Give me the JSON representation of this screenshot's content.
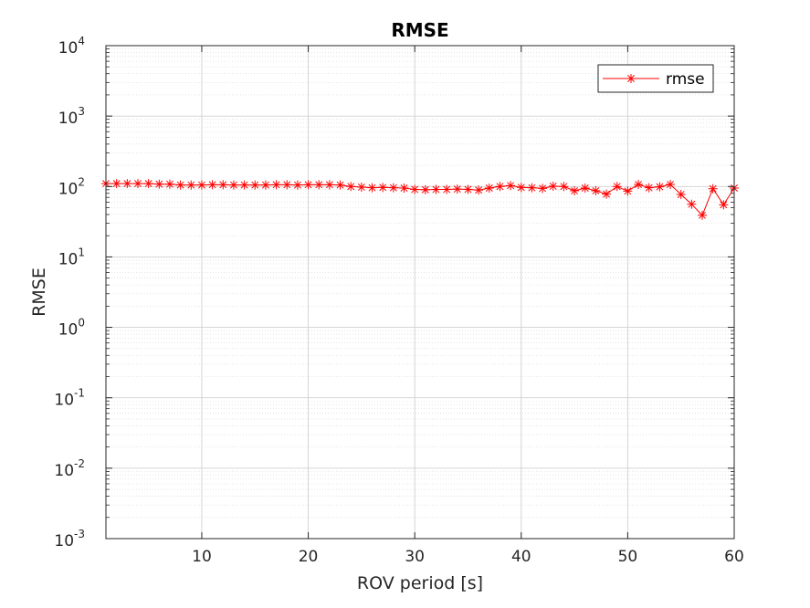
{
  "chart_data": {
    "type": "line",
    "title": "RMSE",
    "xlabel": "ROV period [s]",
    "ylabel": "RMSE",
    "yscale": "log",
    "xlim": [
      1,
      60
    ],
    "ylim_exponents": [
      -3,
      4
    ],
    "xticks": [
      10,
      20,
      30,
      40,
      50,
      60
    ],
    "ytick_base": "10",
    "ytick_exponents": [
      "-3",
      "-2",
      "-1",
      "0",
      "1",
      "2",
      "3",
      "4"
    ],
    "grid": true,
    "minor_grid": true,
    "legend": {
      "position": "top-right",
      "entries": [
        "rmse"
      ]
    },
    "marker": "asterisk",
    "series": [
      {
        "name": "rmse",
        "color": "#ff0000",
        "x": [
          1,
          2,
          3,
          4,
          5,
          6,
          7,
          8,
          9,
          10,
          11,
          12,
          13,
          14,
          15,
          16,
          17,
          18,
          19,
          20,
          21,
          22,
          23,
          24,
          25,
          26,
          27,
          28,
          29,
          30,
          31,
          32,
          33,
          34,
          35,
          36,
          37,
          38,
          39,
          40,
          41,
          42,
          43,
          44,
          45,
          46,
          47,
          48,
          49,
          50,
          51,
          52,
          53,
          54,
          55,
          56,
          57,
          58,
          59,
          60
        ],
        "y": [
          110,
          110,
          110,
          110,
          110,
          108,
          108,
          105,
          105,
          105,
          106,
          106,
          105,
          105,
          105,
          105,
          106,
          106,
          105,
          106,
          106,
          106,
          105,
          100,
          98,
          96,
          97,
          96,
          95,
          91,
          90,
          91,
          91,
          92,
          91,
          89,
          95,
          100,
          103,
          97,
          96,
          94,
          101,
          100,
          87,
          95,
          87,
          78,
          100,
          86,
          107,
          96,
          99,
          107,
          77,
          56,
          39,
          93,
          55,
          95
        ]
      }
    ]
  }
}
